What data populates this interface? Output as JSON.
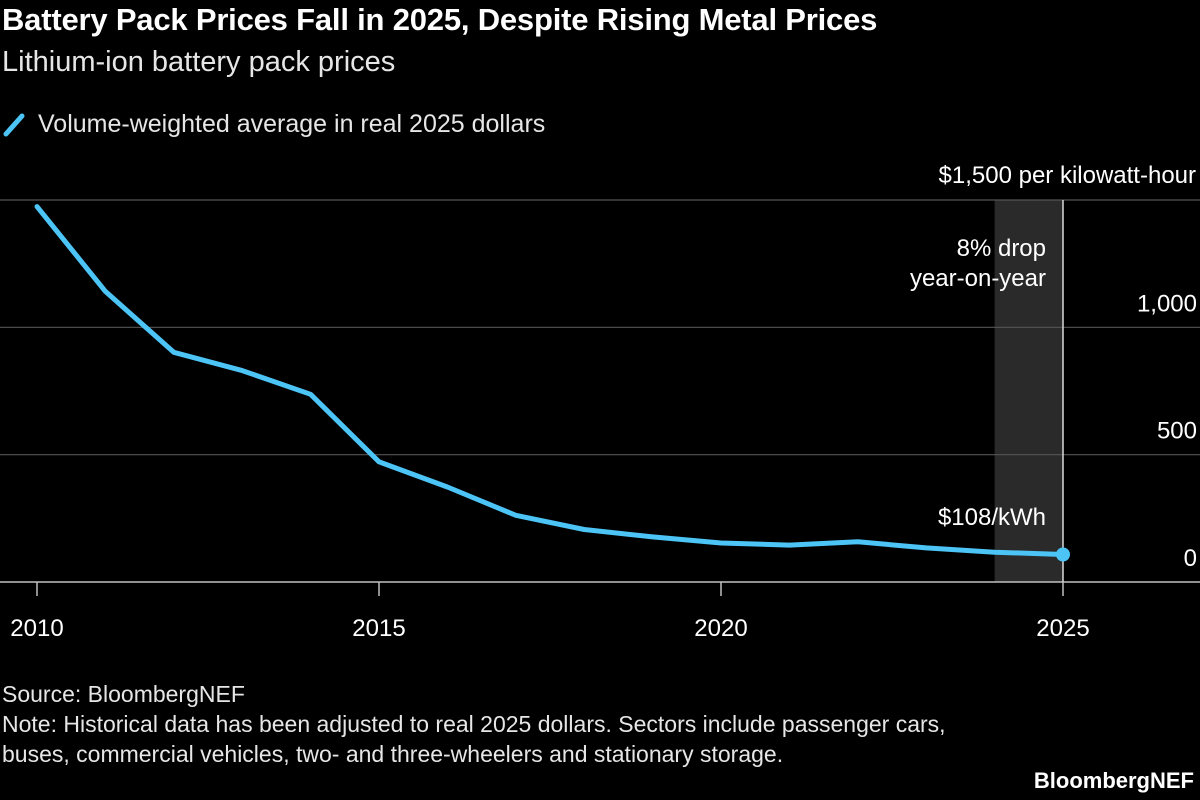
{
  "title": "Battery Pack Prices Fall in 2025, Despite Rising Metal Prices",
  "subtitle": "Lithium-ion battery pack prices",
  "legend": {
    "label": "Volume-weighted average in real 2025 dollars"
  },
  "colors": {
    "background": "#000000",
    "line": "#4cc4f6",
    "grid": "#555555",
    "highlight": "#2a2a2a",
    "text": "#ffffff"
  },
  "chart_data": {
    "type": "line",
    "title": "Battery Pack Prices Fall in 2025, Despite Rising Metal Prices",
    "subtitle": "Lithium-ion battery pack prices",
    "xlabel": "",
    "ylabel": "$ per kilowatt-hour",
    "xlim": [
      2010,
      2026.6
    ],
    "ylim": [
      0,
      1500
    ],
    "x_ticks": [
      2010,
      2015,
      2020,
      2025
    ],
    "x_tick_labels": [
      "2010",
      "2015",
      "2020",
      "2025"
    ],
    "y_ticks": [
      0,
      500,
      1000,
      1500
    ],
    "y_tick_labels": [
      "0",
      "500",
      "1,000",
      "$1,500 per kilowatt-hour"
    ],
    "grid": true,
    "series": [
      {
        "name": "Volume-weighted average in real 2025 dollars",
        "x": [
          2010,
          2011,
          2012,
          2013,
          2014,
          2015,
          2016,
          2017,
          2018,
          2019,
          2020,
          2021,
          2022,
          2023,
          2024,
          2025
        ],
        "values": [
          1474,
          1141,
          902,
          830,
          737,
          472,
          373,
          262,
          206,
          177,
          153,
          145,
          158,
          134,
          117,
          108
        ]
      }
    ],
    "highlight": {
      "x_start": 2024,
      "x_end": 2025,
      "label_line1": "8% drop",
      "label_line2": "year-on-year"
    },
    "end_label": "$108/kWh"
  },
  "source": "Source: BloombergNEF",
  "note": "Note: Historical data has been adjusted to real 2025 dollars. Sectors include passenger cars, buses, commercial vehicles, two- and three-wheelers and stationary storage.",
  "brand": "BloombergNEF"
}
